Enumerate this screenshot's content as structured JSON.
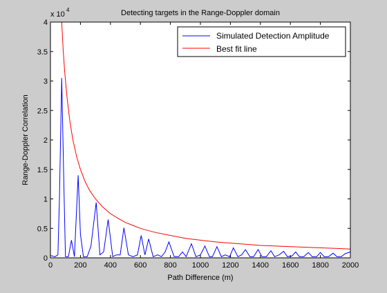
{
  "chart_data": {
    "type": "line",
    "title": "Detecting targets in the Range-Doppler domain",
    "xlabel": "Path Difference (m)",
    "ylabel": "Range-Doppler Correlation",
    "y_exponent_base": "x 10",
    "y_exponent_power": "4",
    "xlim": [
      0,
      2000
    ],
    "ylim": [
      0,
      4
    ],
    "xticks": [
      0,
      200,
      400,
      600,
      800,
      1000,
      1200,
      1400,
      1600,
      1800,
      2000
    ],
    "yticks": [
      0,
      0.5,
      1,
      1.5,
      2,
      2.5,
      3,
      3.5,
      4
    ],
    "xtick_labels": [
      "0",
      "200",
      "400",
      "600",
      "800",
      "1000",
      "1200",
      "1400",
      "1600",
      "1800",
      "2000"
    ],
    "ytick_labels": [
      "0",
      "0.5",
      "1",
      "1.5",
      "2",
      "2.5",
      "3",
      "3.5",
      "4"
    ],
    "grid": false,
    "legend_position": "top-right",
    "series": [
      {
        "name": "Simulated Detection Amplitude",
        "color": "#0000ff",
        "x": [
          0,
          30,
          50,
          60,
          75,
          90,
          100,
          120,
          140,
          160,
          185,
          200,
          220,
          245,
          270,
          305,
          330,
          355,
          385,
          415,
          440,
          465,
          490,
          520,
          550,
          580,
          605,
          630,
          655,
          685,
          715,
          740,
          765,
          790,
          825,
          855,
          880,
          905,
          940,
          970,
          1000,
          1030,
          1060,
          1080,
          1110,
          1140,
          1165,
          1195,
          1220,
          1250,
          1275,
          1300,
          1330,
          1355,
          1385,
          1410,
          1440,
          1470,
          1495,
          1525,
          1555,
          1580,
          1610,
          1635,
          1660,
          1690,
          1720,
          1745,
          1775,
          1800,
          1825,
          1855,
          1885,
          1910,
          1940,
          1965,
          2000
        ],
        "y": [
          0.04,
          0.02,
          0.05,
          1.0,
          3.05,
          1.2,
          0.02,
          0.02,
          0.3,
          0.02,
          1.4,
          0.4,
          0.02,
          0.02,
          0.2,
          0.94,
          0.05,
          0.1,
          0.65,
          0.02,
          0.05,
          0.05,
          0.51,
          0.05,
          0.02,
          0.05,
          0.38,
          0.05,
          0.32,
          0.02,
          0.05,
          0.02,
          0.1,
          0.27,
          0.02,
          0.02,
          0.1,
          0.02,
          0.24,
          0.02,
          0.05,
          0.2,
          0.02,
          0.02,
          0.19,
          0.02,
          0.05,
          0.02,
          0.17,
          0.02,
          0.05,
          0.14,
          0.02,
          0.02,
          0.14,
          0.02,
          0.02,
          0.12,
          0.02,
          0.05,
          0.11,
          0.02,
          0.03,
          0.1,
          0.02,
          0.02,
          0.09,
          0.02,
          0.02,
          0.09,
          0.02,
          0.02,
          0.08,
          0.02,
          0.02,
          0.07,
          0.1
        ]
      },
      {
        "name": "Best fit line",
        "color": "#ff0000",
        "x": [
          75,
          85,
          95,
          110,
          130,
          150,
          175,
          200,
          230,
          260,
          300,
          350,
          400,
          450,
          500,
          550,
          600,
          700,
          800,
          900,
          1000,
          1100,
          1200,
          1300,
          1400,
          1500,
          1600,
          1700,
          1800,
          1900,
          2000
        ],
        "y": [
          4.0,
          3.53,
          3.16,
          2.73,
          2.31,
          2.0,
          1.71,
          1.5,
          1.3,
          1.15,
          1.0,
          0.86,
          0.75,
          0.67,
          0.6,
          0.55,
          0.5,
          0.43,
          0.38,
          0.33,
          0.3,
          0.27,
          0.25,
          0.23,
          0.21,
          0.2,
          0.19,
          0.18,
          0.17,
          0.16,
          0.15
        ]
      }
    ]
  }
}
